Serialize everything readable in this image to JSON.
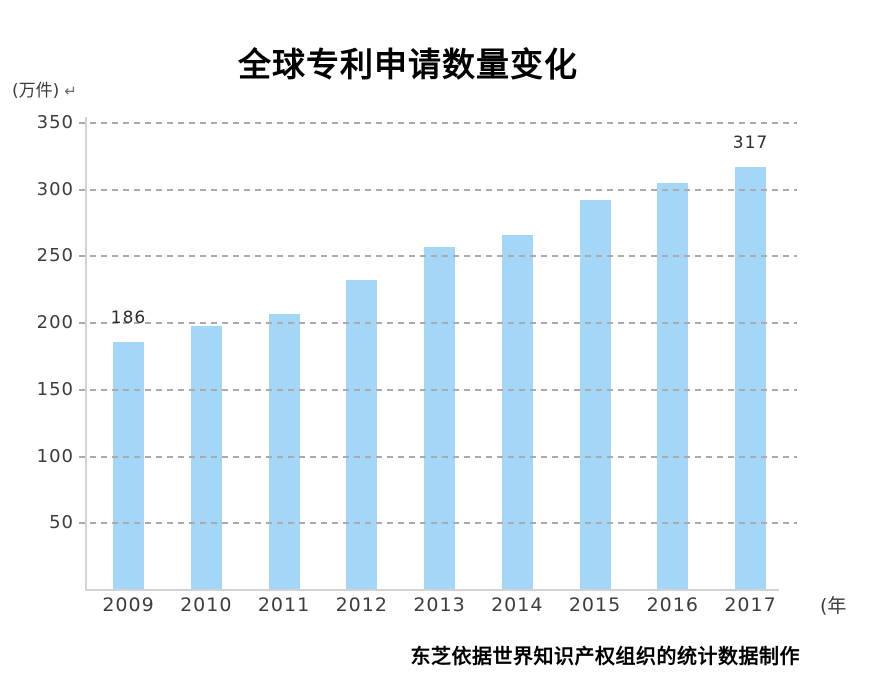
{
  "title": "全球专利申请数量变化",
  "y_axis": {
    "unit_label": "(万件)",
    "return_mark": "↵",
    "tick_labels": [
      "350",
      "300",
      "250",
      "200",
      "150",
      "100",
      "50"
    ]
  },
  "x_axis": {
    "unit_label": "(年",
    "tick_labels": [
      "2009",
      "2010",
      "2011",
      "2012",
      "2013",
      "2014",
      "2015",
      "2016",
      "2017"
    ]
  },
  "caption": "东芝依据世界知识产权组织的统计数据制作",
  "colors": {
    "bar": "#a4d6f7",
    "grid": "#ababab",
    "axis": "#d2d2d2",
    "tick_text": "#3d3d3d",
    "value_label_text": "#2e2e2e",
    "title_text": "#000000"
  },
  "chart_data": {
    "type": "bar",
    "title": "全球专利申请数量变化",
    "categories": [
      "2009",
      "2010",
      "2011",
      "2012",
      "2013",
      "2014",
      "2015",
      "2016",
      "2017"
    ],
    "values": [
      186,
      198,
      207,
      232,
      257,
      266,
      292,
      305,
      317
    ],
    "point_labels": [
      "186",
      "",
      "",
      "",
      "",
      "",
      "",
      "",
      "317"
    ],
    "xlabel": "年",
    "ylabel": "万件",
    "ylim": [
      0,
      350
    ],
    "yticks": [
      350,
      300,
      250,
      200,
      150,
      100,
      50
    ],
    "grid": "horizontal-dashed",
    "legend": "none",
    "bar_color": "#a4d6f7",
    "source_note": "东芝依据世界知识产权组织的统计数据制作"
  }
}
